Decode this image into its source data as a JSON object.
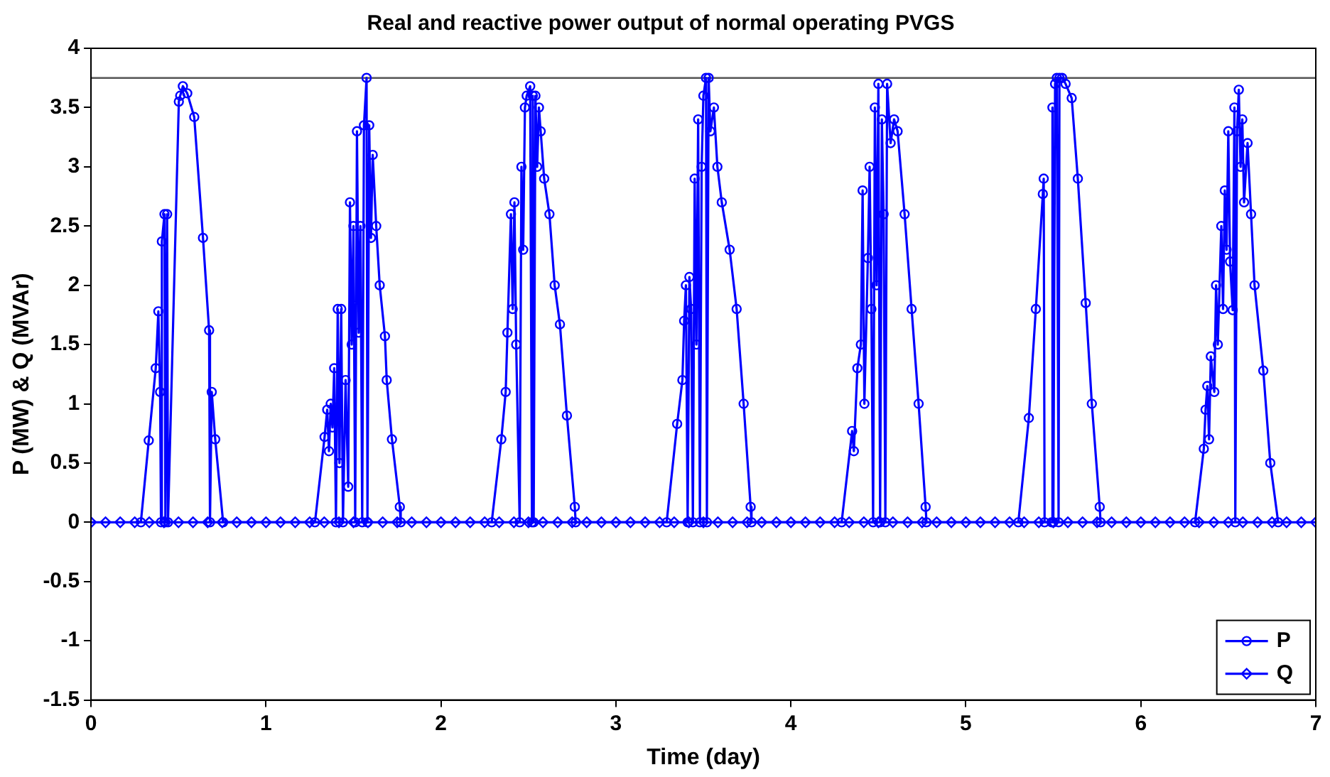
{
  "chart_data": {
    "type": "line",
    "title": "Real and reactive power output of normal operating PVGS",
    "xlabel": "Time (day)",
    "ylabel": "P (MW) & Q (MVAr)",
    "xlim": [
      0,
      7
    ],
    "xticks": [
      0,
      1,
      2,
      3,
      4,
      5,
      6,
      7
    ],
    "ylim": [
      -1.5,
      4
    ],
    "yticks": [
      -1.5,
      -1,
      -0.5,
      0,
      0.5,
      1,
      1.5,
      2,
      2.5,
      3,
      3.5,
      4
    ],
    "grid": false,
    "legend": "bottom right",
    "line_style": "solid",
    "ref_lines": [
      {
        "axis": "y",
        "value": 3.75,
        "label": null,
        "color": "#555555"
      }
    ],
    "series": [
      {
        "name": "P",
        "color": "#0000ff",
        "marker": "circle",
        "x": [
          0.285,
          0.33,
          0.37,
          0.385,
          0.395,
          0.4,
          0.405,
          0.42,
          0.425,
          0.435,
          0.44,
          0.502,
          0.51,
          0.525,
          0.55,
          0.59,
          0.64,
          0.675,
          0.68,
          0.69,
          0.71,
          0.755,
          1.28,
          1.335,
          1.35,
          1.36,
          1.37,
          1.38,
          1.39,
          1.4,
          1.41,
          1.42,
          1.43,
          1.44,
          1.455,
          1.47,
          1.48,
          1.49,
          1.5,
          1.51,
          1.52,
          1.53,
          1.54,
          1.55,
          1.56,
          1.575,
          1.58,
          1.59,
          1.6,
          1.61,
          1.63,
          1.65,
          1.68,
          1.69,
          1.72,
          1.765,
          1.77,
          2.29,
          2.345,
          2.37,
          2.38,
          2.4,
          2.41,
          2.42,
          2.43,
          2.45,
          2.46,
          2.47,
          2.48,
          2.49,
          2.51,
          2.52,
          2.525,
          2.53,
          2.54,
          2.55,
          2.56,
          2.57,
          2.59,
          2.62,
          2.65,
          2.68,
          2.72,
          2.765,
          2.77,
          3.29,
          3.35,
          3.38,
          3.39,
          3.4,
          3.41,
          3.42,
          3.43,
          3.44,
          3.45,
          3.46,
          3.47,
          3.48,
          3.49,
          3.5,
          3.515,
          3.52,
          3.53,
          3.54,
          3.56,
          3.58,
          3.605,
          3.65,
          3.69,
          3.73,
          3.77,
          3.775,
          4.29,
          4.35,
          4.36,
          4.38,
          4.4,
          4.41,
          4.42,
          4.44,
          4.45,
          4.46,
          4.47,
          4.48,
          4.49,
          4.5,
          4.51,
          4.52,
          4.53,
          4.54,
          4.55,
          4.57,
          4.59,
          4.61,
          4.65,
          4.69,
          4.73,
          4.77,
          4.775,
          5.3,
          5.36,
          5.4,
          5.44,
          5.445,
          5.45,
          5.49,
          5.495,
          5.5,
          5.51,
          5.52,
          5.53,
          5.535,
          5.55,
          5.57,
          5.605,
          5.64,
          5.685,
          5.72,
          5.765,
          5.77,
          6.31,
          6.36,
          6.37,
          6.38,
          6.39,
          6.4,
          6.42,
          6.43,
          6.44,
          6.46,
          6.47,
          6.48,
          6.49,
          6.5,
          6.51,
          6.525,
          6.535,
          6.54,
          6.55,
          6.56,
          6.57,
          6.58,
          6.59,
          6.61,
          6.63,
          6.65,
          6.7,
          6.74,
          6.785
        ],
        "values": [
          0,
          0.69,
          1.3,
          1.78,
          1.1,
          0,
          2.37,
          2.6,
          0,
          2.6,
          0,
          3.55,
          3.6,
          3.68,
          3.62,
          3.42,
          2.4,
          1.62,
          0,
          1.1,
          0.7,
          0,
          0,
          0.72,
          0.95,
          0.6,
          1,
          0.8,
          1.3,
          0,
          1.8,
          0.5,
          1.8,
          0,
          1.2,
          0.3,
          2.7,
          1.5,
          2.5,
          0,
          3.3,
          1.6,
          2.5,
          0,
          3.35,
          3.75,
          0,
          3.35,
          2.4,
          3.1,
          2.5,
          2,
          1.57,
          1.2,
          0.7,
          0.13,
          0,
          0,
          0.7,
          1.1,
          1.6,
          2.6,
          1.8,
          2.7,
          1.5,
          0,
          3,
          2.3,
          3.5,
          3.6,
          3.68,
          0,
          3.6,
          0,
          3.6,
          3,
          3.5,
          3.3,
          2.9,
          2.6,
          2,
          1.67,
          0.9,
          0.13,
          0,
          0,
          0.83,
          1.2,
          1.7,
          2,
          0,
          2.07,
          1.8,
          0,
          2.9,
          1.5,
          3.4,
          0,
          3,
          3.6,
          3.75,
          0,
          3.75,
          3.3,
          3.5,
          3,
          2.7,
          2.3,
          1.8,
          1,
          0.13,
          0,
          0,
          0.77,
          0.6,
          1.3,
          1.5,
          2.8,
          1,
          2.23,
          3,
          1.8,
          0,
          3.5,
          2,
          3.7,
          0,
          3.4,
          2.6,
          0,
          3.7,
          3.2,
          3.4,
          3.3,
          2.6,
          1.8,
          1,
          0.13,
          0,
          0,
          0.88,
          1.8,
          2.77,
          2.9,
          0,
          0,
          3.5,
          0,
          3.7,
          3.75,
          0,
          3.75,
          3.75,
          3.7,
          3.58,
          2.9,
          1.85,
          1,
          0.13,
          0,
          0,
          0.62,
          0.95,
          1.15,
          0.7,
          1.4,
          1.1,
          2,
          1.5,
          2.5,
          1.8,
          2.8,
          2.3,
          3.3,
          2.2,
          1.79,
          3.5,
          0,
          3.3,
          3.65,
          3,
          3.4,
          2.7,
          3.2,
          2.6,
          2,
          1.28,
          0.5,
          0
        ]
      },
      {
        "name": "Q",
        "color": "#0000ff",
        "marker": "diamond",
        "x": [
          0,
          0.083,
          0.167,
          0.25,
          0.333,
          0.417,
          0.5,
          0.583,
          0.667,
          0.75,
          0.833,
          0.917,
          1,
          1.083,
          1.167,
          1.25,
          1.333,
          1.417,
          1.5,
          1.583,
          1.667,
          1.75,
          1.833,
          1.917,
          2,
          2.083,
          2.167,
          2.25,
          2.333,
          2.417,
          2.5,
          2.583,
          2.667,
          2.75,
          2.833,
          2.917,
          3,
          3.083,
          3.167,
          3.25,
          3.333,
          3.417,
          3.5,
          3.583,
          3.667,
          3.75,
          3.833,
          3.917,
          4,
          4.083,
          4.167,
          4.25,
          4.333,
          4.417,
          4.5,
          4.583,
          4.667,
          4.75,
          4.833,
          4.917,
          5,
          5.083,
          5.167,
          5.25,
          5.333,
          5.417,
          5.5,
          5.583,
          5.667,
          5.75,
          5.833,
          5.917,
          6,
          6.083,
          6.167,
          6.25,
          6.333,
          6.417,
          6.5,
          6.583,
          6.667,
          6.75,
          6.833,
          6.917,
          7
        ],
        "values": [
          0,
          0,
          0,
          0,
          0,
          0,
          0,
          0,
          0,
          0,
          0,
          0,
          0,
          0,
          0,
          0,
          0,
          0,
          0,
          0,
          0,
          0,
          0,
          0,
          0,
          0,
          0,
          0,
          0,
          0,
          0,
          0,
          0,
          0,
          0,
          0,
          0,
          0,
          0,
          0,
          0,
          0,
          0,
          0,
          0,
          0,
          0,
          0,
          0,
          0,
          0,
          0,
          0,
          0,
          0,
          0,
          0,
          0,
          0,
          0,
          0,
          0,
          0,
          0,
          0,
          0,
          0,
          0,
          0,
          0,
          0,
          0,
          0,
          0,
          0,
          0,
          0,
          0,
          0,
          0,
          0,
          0,
          0,
          0,
          0
        ]
      }
    ]
  }
}
